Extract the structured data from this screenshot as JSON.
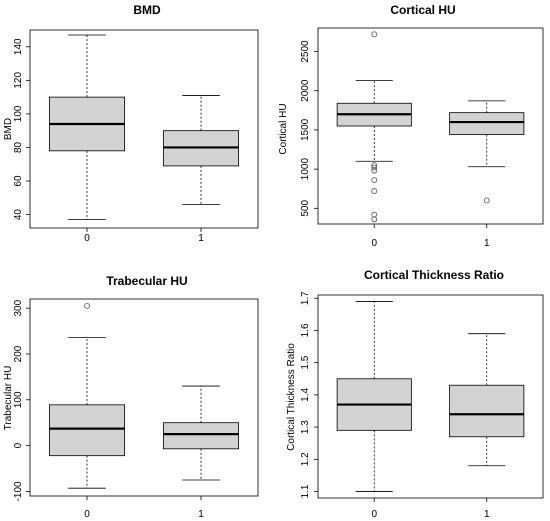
{
  "chart_data": [
    {
      "type": "box",
      "title": "BMD",
      "xlabel": "",
      "ylabel": "BMD",
      "categories": [
        "0",
        "1"
      ],
      "yticks": [
        40,
        60,
        80,
        100,
        120,
        140
      ],
      "ylim": [
        32,
        150
      ],
      "boxes": [
        {
          "min": 37,
          "q1": 78,
          "median": 94,
          "q3": 110,
          "max": 147,
          "outliers": []
        },
        {
          "min": 46,
          "q1": 69,
          "median": 80,
          "q3": 90,
          "max": 111,
          "outliers": []
        }
      ]
    },
    {
      "type": "box",
      "title": "Cortical HU",
      "xlabel": "",
      "ylabel": "Cortical HU",
      "categories": [
        "0",
        "1"
      ],
      "yticks": [
        500,
        1000,
        1500,
        2000,
        2500
      ],
      "ylim": [
        300,
        2800
      ],
      "boxes": [
        {
          "min": 1100,
          "q1": 1550,
          "median": 1700,
          "q3": 1840,
          "max": 2130,
          "outliers": [
            2720,
            1050,
            1020,
            980,
            860,
            720,
            420,
            360
          ]
        },
        {
          "min": 1030,
          "q1": 1440,
          "median": 1600,
          "q3": 1720,
          "max": 1870,
          "outliers": [
            600
          ]
        }
      ]
    },
    {
      "type": "box",
      "title": "Trabecular HU",
      "xlabel": "",
      "ylabel": "Trabecular HU",
      "categories": [
        "0",
        "1"
      ],
      "yticks": [
        -100,
        0,
        100,
        200,
        300
      ],
      "ylim": [
        -110,
        320
      ],
      "boxes": [
        {
          "min": -93,
          "q1": -22,
          "median": 37,
          "q3": 89,
          "max": 236,
          "outliers": [
            305
          ]
        },
        {
          "min": -75,
          "q1": -7,
          "median": 25,
          "q3": 50,
          "max": 130,
          "outliers": []
        }
      ]
    },
    {
      "type": "box",
      "title": "Cortical Thickness Ratio",
      "xlabel": "",
      "ylabel": "Cortical Thickness Ratio",
      "categories": [
        "0",
        "1"
      ],
      "yticks": [
        1.1,
        1.2,
        1.3,
        1.4,
        1.5,
        1.6,
        1.7
      ],
      "ylim": [
        1.08,
        1.71
      ],
      "boxes": [
        {
          "min": 1.1,
          "q1": 1.29,
          "median": 1.37,
          "q3": 1.45,
          "max": 1.69,
          "outliers": []
        },
        {
          "min": 1.18,
          "q1": 1.27,
          "median": 1.34,
          "q3": 1.43,
          "max": 1.59,
          "outliers": []
        }
      ]
    }
  ]
}
